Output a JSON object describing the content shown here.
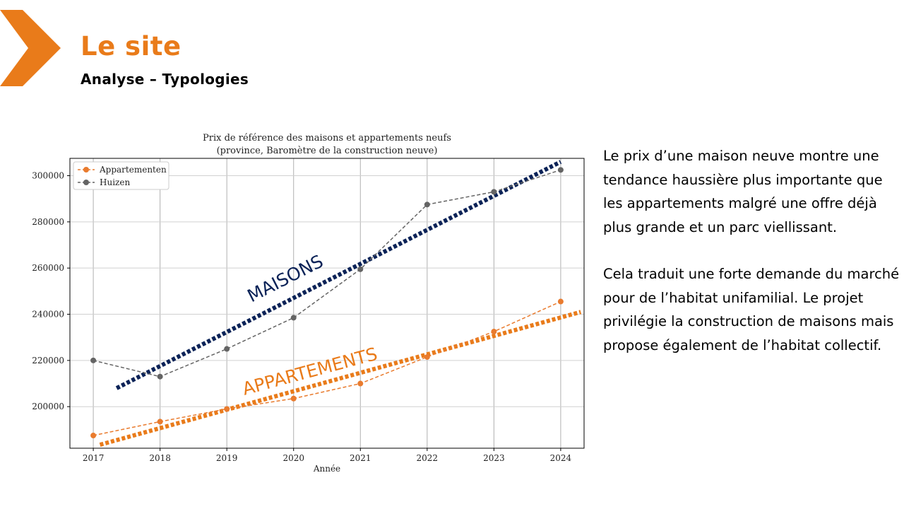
{
  "slide": {
    "title": "Le site",
    "subtitle": "Analyse – Typologies",
    "paragraphs": [
      "Le prix d’une maison neuve montre une tendance haussière plus importante que les appartements malgré une offre déjà plus grande et un parc viellissant.",
      "Cela traduit une forte demande du marché pour de l’habitat unifamilial. Le projet privilégie la construction de maisons mais propose également de l’habitat collectif."
    ],
    "colors": {
      "accent": "#e97b1a",
      "navy": "#0a2257"
    },
    "logo_icon": "chevron-right-icon"
  },
  "chart_data": {
    "type": "line",
    "title_line1": "Prix de référence des maisons et appartements neufs",
    "title_line2": "(province, Baromètre de la construction neuve)",
    "xlabel": "Année",
    "ylabel": "",
    "x": [
      2017,
      2018,
      2019,
      2020,
      2021,
      2022,
      2023,
      2024
    ],
    "xlim": [
      2016.65,
      2024.35
    ],
    "ylim": [
      182000,
      307500
    ],
    "yticks": [
      200000,
      220000,
      240000,
      260000,
      280000,
      300000
    ],
    "grid": true,
    "legend_position": "top-left",
    "series": [
      {
        "name": "Appartementen",
        "color": "#e97b2e",
        "values": [
          187500,
          193500,
          199000,
          203500,
          210000,
          221500,
          232500,
          245500
        ]
      },
      {
        "name": "Huizen",
        "color": "#646464",
        "values": [
          220000,
          213000,
          225000,
          238500,
          259500,
          287500,
          293000,
          302500
        ]
      }
    ],
    "trendlines": [
      {
        "label": "MAISONS",
        "color": "#0a2257",
        "from": [
          2017.35,
          208000
        ],
        "to": [
          2024.0,
          306000
        ]
      },
      {
        "label": "APPARTEMENTS",
        "color": "#e97b1a",
        "from": [
          2017.1,
          183500
        ],
        "to": [
          2024.3,
          241000
        ]
      }
    ]
  }
}
